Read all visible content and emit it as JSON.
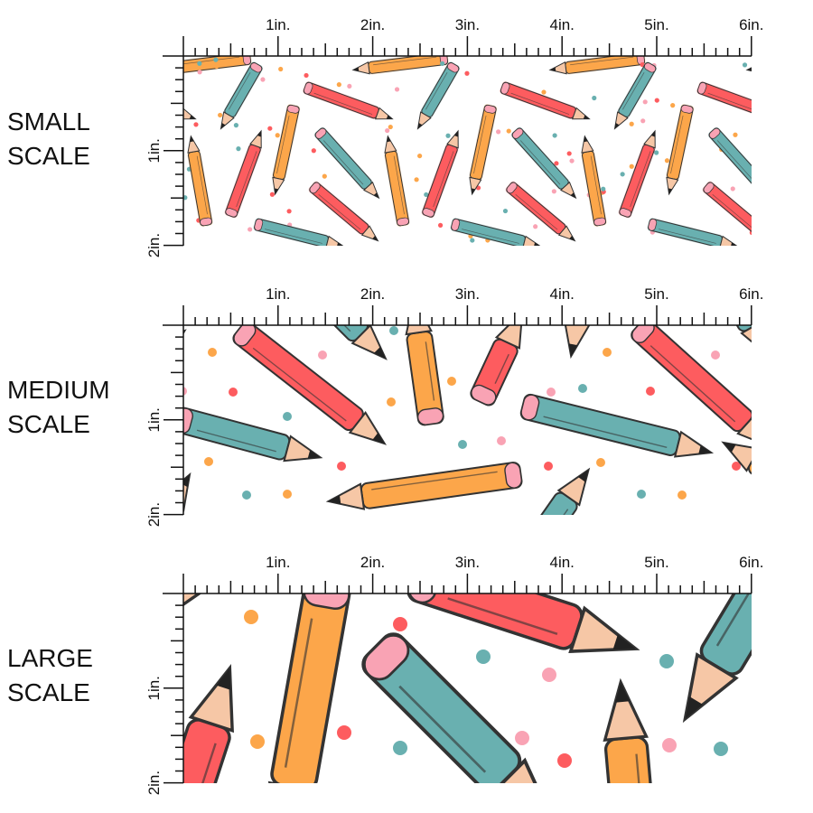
{
  "panels": [
    {
      "id": "small",
      "label_line1": "SMALL",
      "label_line2": "SCALE"
    },
    {
      "id": "medium",
      "label_line1": "MEDIUM",
      "label_line2": "SCALE"
    },
    {
      "id": "large",
      "label_line1": "LARGE",
      "label_line2": "SCALE"
    }
  ],
  "ruler": {
    "top_labels": [
      "1in.",
      "2in.",
      "3in.",
      "4in.",
      "5in.",
      "6in."
    ],
    "side_labels": [
      "1in.",
      "2in."
    ]
  },
  "pattern": {
    "colors": {
      "orange": "#fca64a",
      "teal": "#69b0b0",
      "red": "#fd5c5f",
      "pink": "#f9a3b4",
      "wood": "#f6c7a6",
      "outline": "#333333",
      "background": "#ffffff"
    }
  }
}
